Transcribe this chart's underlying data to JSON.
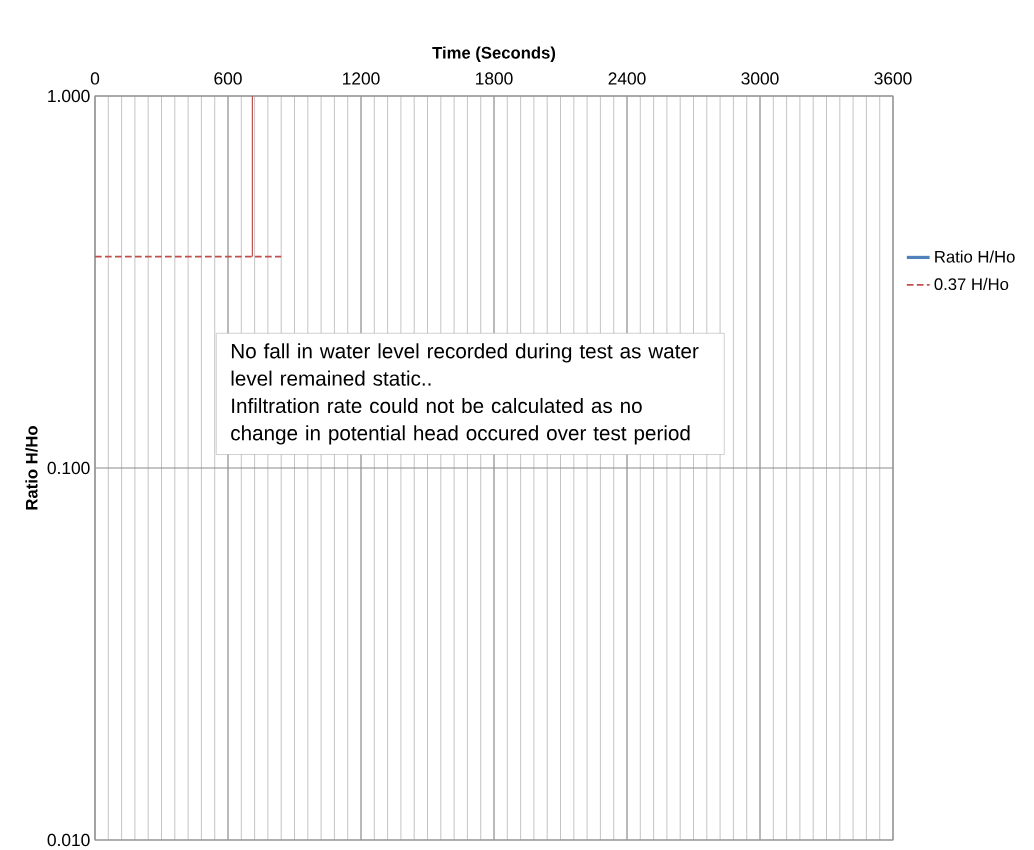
{
  "chart_data": {
    "type": "line",
    "xlabel": "Time (Seconds)",
    "ylabel": "Ratio H/Ho",
    "xlim": [
      0,
      3600
    ],
    "xticks": [
      0,
      600,
      1200,
      1800,
      2400,
      3000,
      3600
    ],
    "ylim": [
      0.01,
      1
    ],
    "yticks": [
      {
        "value": 0.01,
        "label": "0.010"
      },
      {
        "value": 0.1,
        "label": "0.100"
      },
      {
        "value": 1,
        "label": "1.000"
      }
    ],
    "log": "y",
    "grid": true,
    "legend": "right",
    "series": [
      {
        "name": "Ratio H/Ho",
        "color": "#4f81bd",
        "line_style": "solid"
      },
      {
        "name": "0.37 H/Ho",
        "color": "#c0504d",
        "line_style": "dashed",
        "x": [
          0,
          840
        ],
        "values": [
          0.37,
          0.37
        ]
      },
      {
        "color": "#c0504d",
        "line_style": "solid",
        "x": [
          710,
          710
        ],
        "values": [
          0.37,
          1
        ]
      }
    ],
    "annotations": [
      "No fall in water level recorded during test as water level remained static..",
      "Infiltration rate could not be calculated as no change in potential head occured over test period"
    ]
  }
}
